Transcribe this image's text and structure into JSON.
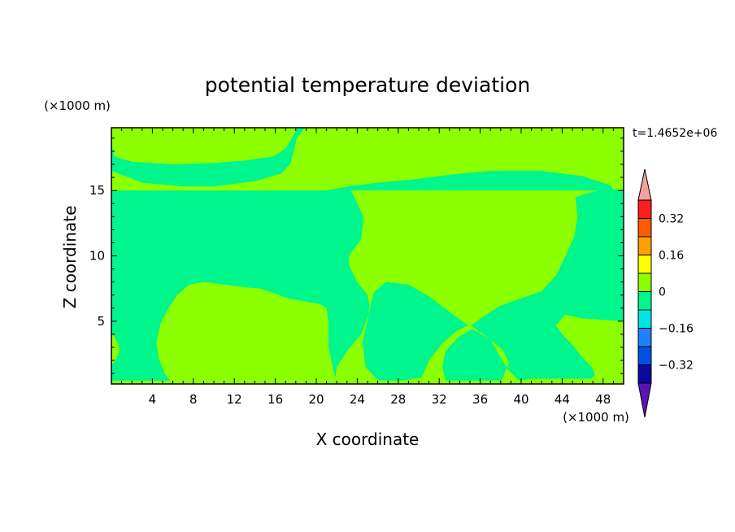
{
  "chart_data": {
    "type": "heatmap",
    "title": "potential temperature deviation",
    "time_label": "t=1.4652e+06",
    "xlabel": "X coordinate",
    "ylabel": "Z coordinate",
    "x_unit": "(×1000 m)",
    "y_unit": "(×1000 m)",
    "xlim": [
      0,
      50
    ],
    "ylim": [
      0.2,
      19.8
    ],
    "x_ticks": [
      4,
      8,
      12,
      16,
      20,
      24,
      28,
      32,
      36,
      40,
      44,
      48
    ],
    "y_ticks": [
      5,
      10,
      15
    ],
    "background_color": "#00f58c",
    "positive_color": "#8cff00",
    "colorbar": {
      "levels": [
        -0.4,
        -0.32,
        -0.24,
        -0.16,
        -0.08,
        0,
        0.08,
        0.16,
        0.24,
        0.32,
        0.4
      ],
      "colors": [
        "#5a14b4",
        "#0a0aa0",
        "#0050e6",
        "#1e82ff",
        "#00e6e6",
        "#00f58c",
        "#8cff00",
        "#ffff00",
        "#ffa000",
        "#ff5a00",
        "#ff1e1e",
        "#f5a0a0"
      ],
      "tick_labels": [
        "0.32",
        "0.16",
        "0",
        "−0.16",
        "−0.32"
      ],
      "tick_values": [
        0.32,
        0.16,
        0,
        -0.16,
        -0.32
      ]
    },
    "regions": [
      {
        "value": 0.04,
        "points": [
          [
            0,
            19.8
          ],
          [
            0,
            18.6
          ],
          [
            0.3,
            17.6
          ],
          [
            2,
            17.2
          ],
          [
            6,
            17.0
          ],
          [
            10,
            17.1
          ],
          [
            13,
            17.3
          ],
          [
            15.8,
            17.6
          ],
          [
            17,
            18.2
          ],
          [
            18.2,
            19.8
          ]
        ]
      },
      {
        "value": 0.04,
        "points": [
          [
            0,
            16.5
          ],
          [
            3,
            15.6
          ],
          [
            7,
            15.3
          ],
          [
            10,
            15.3
          ],
          [
            14,
            15.7
          ],
          [
            16.6,
            16.3
          ],
          [
            17.5,
            17.1
          ],
          [
            18.1,
            19.0
          ],
          [
            18.9,
            19.8
          ],
          [
            50,
            19.8
          ],
          [
            50,
            15.0
          ],
          [
            49,
            15.1
          ],
          [
            48.7,
            15.4
          ],
          [
            46,
            16.1
          ],
          [
            42,
            16.5
          ],
          [
            37,
            16.5
          ],
          [
            33,
            16.2
          ],
          [
            29,
            15.8
          ],
          [
            26,
            15.6
          ],
          [
            23,
            15.3
          ],
          [
            21,
            15.0
          ],
          [
            0,
            15.0
          ]
        ]
      },
      {
        "value": 0.04,
        "points": [
          [
            23.4,
            15.0
          ],
          [
            31,
            15.0
          ],
          [
            47.6,
            15.0
          ],
          [
            46.5,
            14.8
          ],
          [
            45.3,
            14.5
          ],
          [
            45.5,
            13.0
          ],
          [
            45.2,
            11.5
          ],
          [
            44.2,
            9.8
          ],
          [
            43.4,
            8.5
          ],
          [
            42,
            7.3
          ],
          [
            38,
            6.2
          ],
          [
            36,
            5.2
          ],
          [
            35,
            4.6
          ],
          [
            33.2,
            5.6
          ],
          [
            31,
            6.9
          ],
          [
            29,
            7.8
          ],
          [
            26.8,
            8.0
          ],
          [
            25.6,
            7.2
          ],
          [
            25.1,
            5.5
          ],
          [
            24.4,
            4.0
          ],
          [
            23,
            2.7
          ],
          [
            22,
            1.5
          ],
          [
            21.8,
            0.5
          ],
          [
            22,
            0.2
          ],
          [
            32.8,
            0.2
          ],
          [
            32.6,
            0.6
          ],
          [
            32.3,
            1.5
          ],
          [
            32.6,
            2.7
          ],
          [
            33.9,
            3.8
          ],
          [
            35.2,
            4.4
          ],
          [
            36.8,
            3.7
          ],
          [
            38.2,
            2.8
          ],
          [
            38.8,
            1.8
          ],
          [
            38.3,
            0.9
          ],
          [
            38.0,
            0.2
          ],
          [
            39.8,
            0.2
          ],
          [
            39.9,
            0.5
          ],
          [
            41,
            0.6
          ],
          [
            46.9,
            0.6
          ],
          [
            47.2,
            0.9
          ],
          [
            46.9,
            1.5
          ],
          [
            46,
            2.2
          ],
          [
            45,
            3.2
          ],
          [
            44,
            4.0
          ],
          [
            43.4,
            4.7
          ],
          [
            44.3,
            5.5
          ],
          [
            46,
            5.2
          ],
          [
            50,
            5.0
          ],
          [
            50,
            0.2
          ],
          [
            49.5,
            0.4
          ],
          [
            40,
            0.3
          ],
          [
            38.7,
            1.3
          ],
          [
            37,
            3.6
          ],
          [
            35.2,
            4.6
          ],
          [
            34.8,
            4.7
          ],
          [
            33.6,
            4.2
          ],
          [
            32.3,
            3.3
          ],
          [
            31,
            2.0
          ],
          [
            30.3,
            0.7
          ],
          [
            28,
            0.4
          ],
          [
            26,
            0.5
          ],
          [
            24.8,
            1.5
          ],
          [
            24.5,
            3.5
          ],
          [
            25,
            5.0
          ],
          [
            25.2,
            6.2
          ],
          [
            25,
            7.0
          ],
          [
            24,
            8.0
          ],
          [
            23.2,
            9.3
          ],
          [
            23.2,
            10.0
          ],
          [
            24.4,
            11.3
          ],
          [
            24.6,
            13.0
          ],
          [
            24,
            14.0
          ],
          [
            23.4,
            15.0
          ]
        ]
      },
      {
        "value": 0.04,
        "points": [
          [
            6.0,
            0.2
          ],
          [
            5.2,
            1.0
          ],
          [
            4.6,
            2.2
          ],
          [
            4.4,
            3.4
          ],
          [
            4.8,
            4.8
          ],
          [
            5.6,
            6.0
          ],
          [
            6.4,
            7.0
          ],
          [
            7.6,
            7.8
          ],
          [
            9,
            8.0
          ],
          [
            11,
            7.8
          ],
          [
            13,
            7.6
          ],
          [
            14.5,
            7.5
          ],
          [
            16,
            7.1
          ],
          [
            17.4,
            6.7
          ],
          [
            19,
            6.5
          ],
          [
            20.4,
            6.3
          ],
          [
            21,
            6.0
          ],
          [
            21.2,
            5.0
          ],
          [
            21.2,
            3.0
          ],
          [
            21.6,
            1.5
          ],
          [
            21.9,
            0.5
          ],
          [
            22,
            0.2
          ]
        ]
      },
      {
        "value": 0.04,
        "points": [
          [
            0,
            0.2
          ],
          [
            0,
            0.45
          ],
          [
            50,
            0.45
          ],
          [
            50,
            0.2
          ]
        ]
      },
      {
        "value": 0.04,
        "points": [
          [
            0,
            4.2
          ],
          [
            0.6,
            3.4
          ],
          [
            0.8,
            2.8
          ],
          [
            0.4,
            2.0
          ],
          [
            0,
            1.6
          ]
        ]
      }
    ]
  }
}
